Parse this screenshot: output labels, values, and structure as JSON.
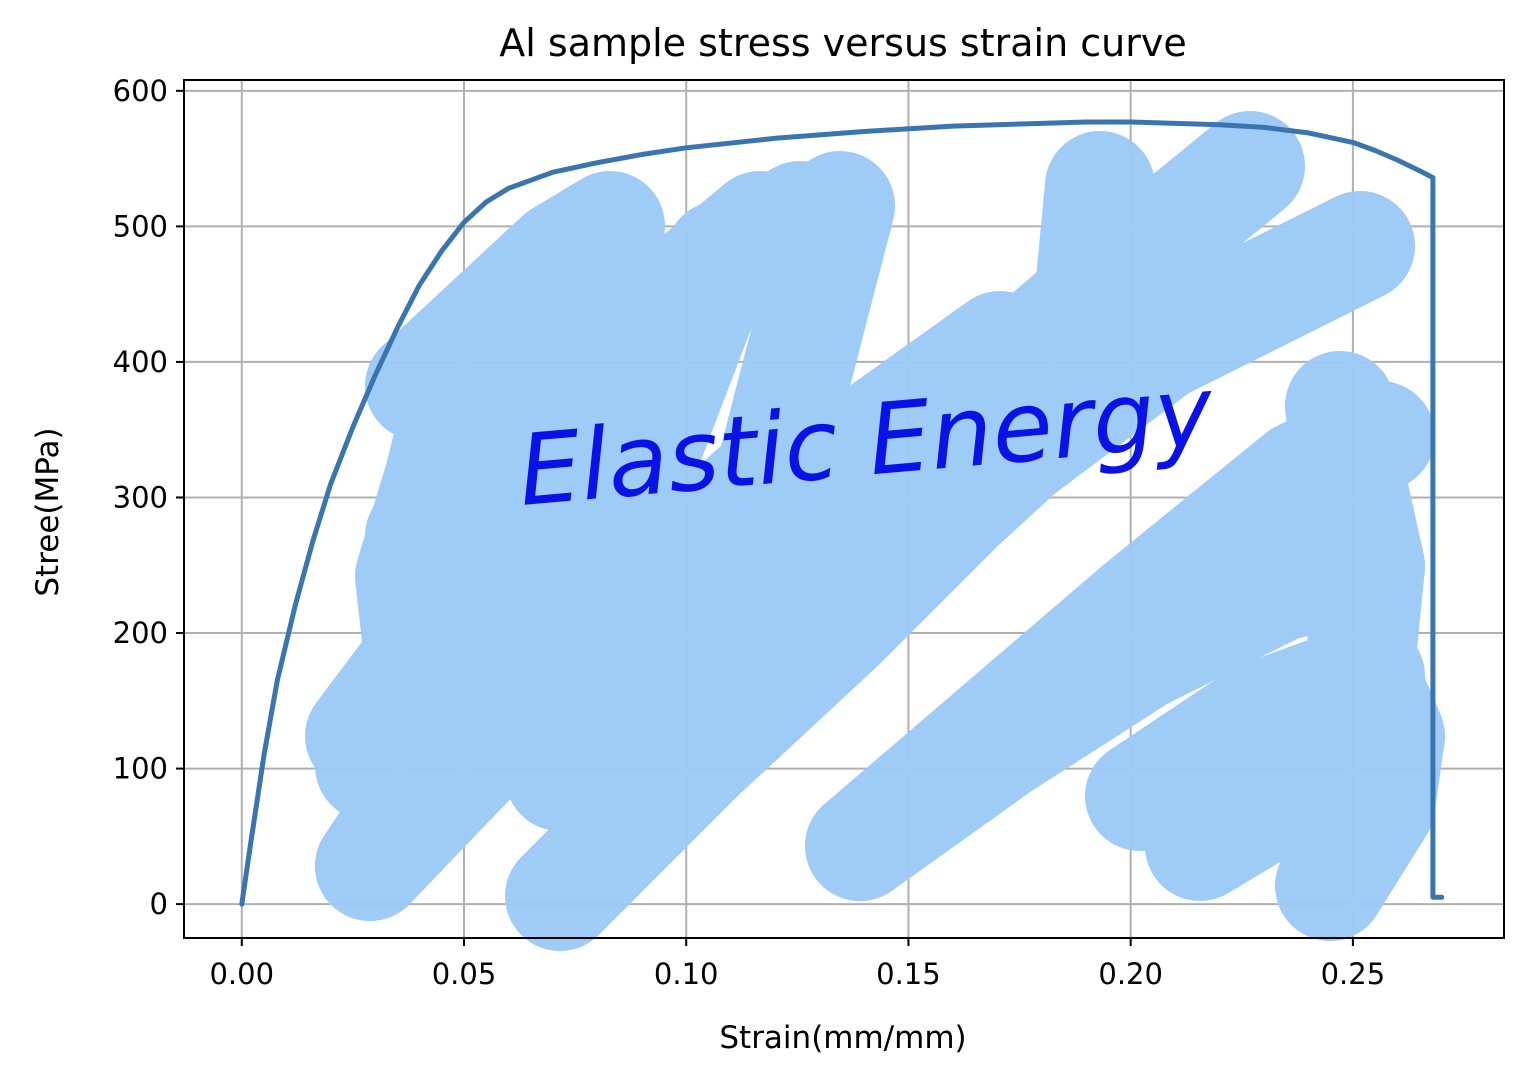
{
  "chart_data": {
    "type": "line",
    "title": "Al sample stress versus strain curve",
    "xlabel": "Strain(mm/mm)",
    "ylabel": "Stree(MPa)",
    "xlim": [
      -0.013,
      0.284
    ],
    "ylim": [
      -25,
      608
    ],
    "xticks": [
      0.0,
      0.05,
      0.1,
      0.15,
      0.2,
      0.25
    ],
    "xtick_labels": [
      "0.00",
      "0.05",
      "0.10",
      "0.15",
      "0.20",
      "0.25"
    ],
    "yticks": [
      0,
      100,
      200,
      300,
      400,
      500,
      600
    ],
    "ytick_labels": [
      "0",
      "100",
      "200",
      "300",
      "400",
      "500",
      "600"
    ],
    "grid": true,
    "legend": "none",
    "series": [
      {
        "color": "#3a75b0",
        "x": [
          0.0,
          0.002,
          0.005,
          0.008,
          0.012,
          0.016,
          0.02,
          0.025,
          0.03,
          0.035,
          0.04,
          0.045,
          0.05,
          0.055,
          0.06,
          0.07,
          0.08,
          0.09,
          0.1,
          0.12,
          0.14,
          0.16,
          0.18,
          0.19,
          0.2,
          0.21,
          0.22,
          0.23,
          0.24,
          0.25,
          0.255,
          0.26,
          0.265,
          0.268,
          0.268,
          0.268,
          0.27
        ],
        "y": [
          0,
          45,
          110,
          165,
          220,
          268,
          310,
          352,
          390,
          425,
          457,
          482,
          503,
          518,
          528,
          540,
          547,
          553,
          558,
          565,
          570,
          574,
          576,
          577,
          577,
          576,
          575,
          573,
          569,
          562,
          556,
          549,
          541,
          536,
          200,
          5,
          5
        ]
      }
    ],
    "annotations": [
      {
        "text": "Elastic Energy",
        "color": "#0a12e6",
        "style": "handwritten"
      }
    ],
    "shaded_region": {
      "label": "Elastic Energy",
      "color": "#9ecaf7"
    }
  }
}
